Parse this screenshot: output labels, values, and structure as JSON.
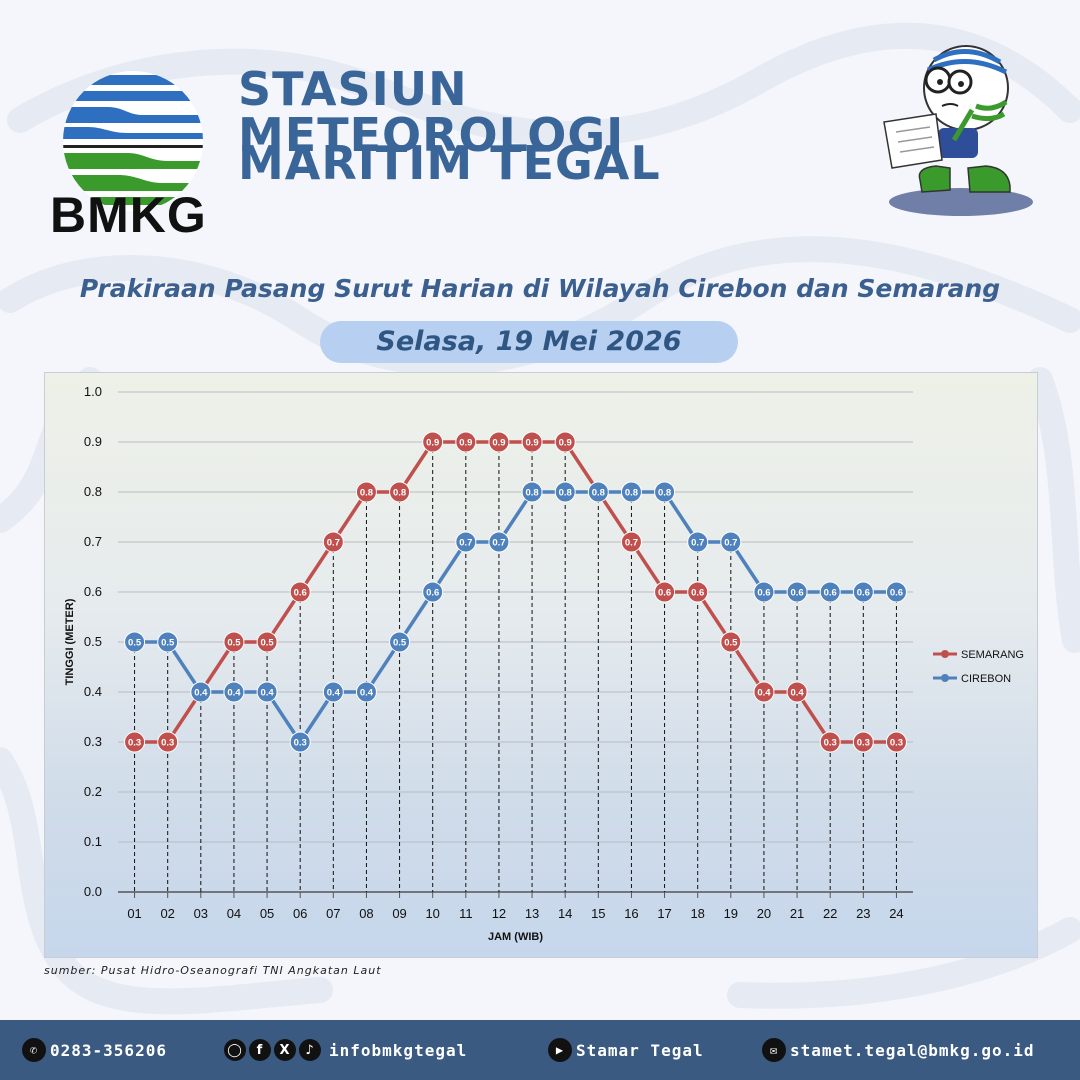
{
  "header": {
    "logo_text": "BMKG",
    "title_line1": "STASIUN METEOROLOGI",
    "title_line2": "MARITIM TEGAL"
  },
  "subtitle": "Prakiraan Pasang Surut Harian di Wilayah Cirebon dan Semarang",
  "date": "Selasa, 19 Mei 2026",
  "source_note": "sumber: Pusat Hidro-Oseanografi TNI Angkatan Laut",
  "chart_data": {
    "type": "line",
    "xlabel": "JAM (WIB)",
    "ylabel": "TINGGI (METER)",
    "ylim": [
      0,
      1.0
    ],
    "yticks": [
      "0.0",
      "0.1",
      "0.2",
      "0.3",
      "0.4",
      "0.5",
      "0.6",
      "0.7",
      "0.8",
      "0.9",
      "1.0"
    ],
    "categories": [
      "01",
      "02",
      "03",
      "04",
      "05",
      "06",
      "07",
      "08",
      "09",
      "10",
      "11",
      "12",
      "13",
      "14",
      "15",
      "16",
      "17",
      "18",
      "19",
      "20",
      "21",
      "22",
      "23",
      "24"
    ],
    "series": [
      {
        "name": "SEMARANG",
        "color": "#c0504d",
        "values": [
          0.3,
          0.3,
          0.4,
          0.5,
          0.5,
          0.6,
          0.7,
          0.8,
          0.8,
          0.9,
          0.9,
          0.9,
          0.9,
          0.9,
          0.8,
          0.7,
          0.6,
          0.6,
          0.5,
          0.4,
          0.4,
          0.3,
          0.3,
          0.3
        ],
        "labeled": [
          true,
          true,
          false,
          true,
          true,
          true,
          true,
          true,
          true,
          true,
          true,
          true,
          true,
          true,
          false,
          true,
          true,
          true,
          true,
          true,
          true,
          true,
          true,
          true
        ]
      },
      {
        "name": "CIREBON",
        "color": "#4f81bd",
        "values": [
          0.5,
          0.5,
          0.4,
          0.4,
          0.4,
          0.3,
          0.4,
          0.4,
          0.5,
          0.6,
          0.7,
          0.7,
          0.8,
          0.8,
          0.8,
          0.8,
          0.8,
          0.7,
          0.7,
          0.6,
          0.6,
          0.6,
          0.6,
          0.6
        ],
        "labeled": [
          true,
          true,
          true,
          true,
          true,
          true,
          true,
          true,
          true,
          true,
          true,
          true,
          true,
          true,
          true,
          true,
          true,
          true,
          true,
          true,
          true,
          true,
          true,
          true
        ]
      }
    ],
    "legend": "right",
    "grid": true,
    "drop_lines": true
  },
  "footer": {
    "phone": "0283-356206",
    "social_handle": "infobmkgtegal",
    "youtube": "Stamar Tegal",
    "email": "stamet.tegal@bmkg.go.id",
    "icons": [
      "phone-icon",
      "instagram-icon",
      "facebook-icon",
      "x-icon",
      "tiktok-icon",
      "youtube-icon",
      "mail-icon"
    ]
  }
}
